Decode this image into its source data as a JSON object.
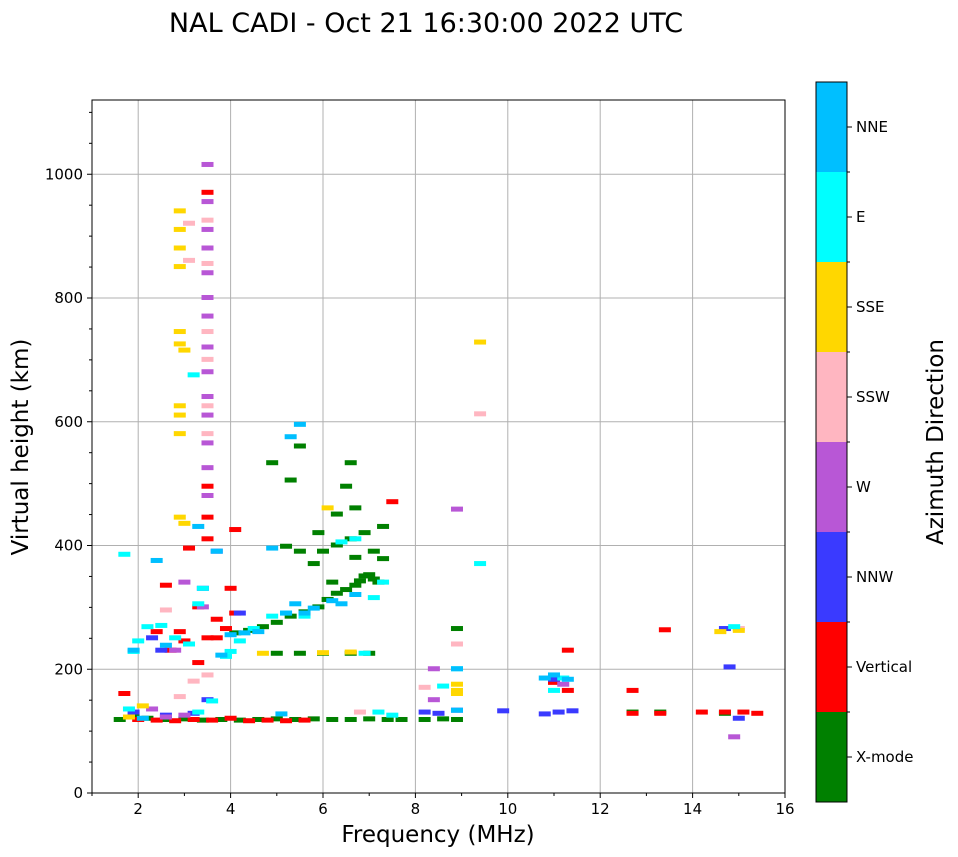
{
  "chart_data": {
    "type": "scatter",
    "title": "NAL CADI - Oct 21 16:30:00 2022 UTC",
    "xlabel": "Frequency (MHz)",
    "ylabel": "Virtual height (km)",
    "xlim": [
      1,
      16
    ],
    "ylim": [
      0,
      1120
    ],
    "x_ticks": [
      2,
      4,
      6,
      8,
      10,
      12,
      14,
      16
    ],
    "y_ticks": [
      0,
      200,
      400,
      600,
      800,
      1000
    ],
    "grid": true,
    "colorbar": {
      "label": "Azimuth Direction",
      "categories": [
        "X-mode",
        "Vertical",
        "NNW",
        "W",
        "SSW",
        "SSE",
        "E",
        "NNE"
      ],
      "colors": [
        "#008000",
        "#ff0000",
        "#3a3aff",
        "#b857d6",
        "#ffb6c1",
        "#ffd700",
        "#00ffff",
        "#00bfff"
      ]
    },
    "series": [
      {
        "name": "X-mode",
        "points": [
          [
            1.6,
            118
          ],
          [
            1.9,
            122
          ],
          [
            2.2,
            120
          ],
          [
            2.6,
            118
          ],
          [
            3.0,
            119
          ],
          [
            3.4,
            117
          ],
          [
            3.8,
            118
          ],
          [
            4.2,
            117
          ],
          [
            4.6,
            118
          ],
          [
            5.0,
            119
          ],
          [
            5.4,
            118
          ],
          [
            5.8,
            119
          ],
          [
            6.2,
            118
          ],
          [
            6.6,
            118
          ],
          [
            7.0,
            119
          ],
          [
            7.4,
            118
          ],
          [
            7.7,
            118
          ],
          [
            8.2,
            118
          ],
          [
            8.6,
            119
          ],
          [
            8.9,
            118
          ],
          [
            12.7,
            130
          ],
          [
            13.3,
            130
          ],
          [
            14.7,
            128
          ],
          [
            5.0,
            225
          ],
          [
            5.5,
            225
          ],
          [
            6.0,
            225
          ],
          [
            6.6,
            225
          ],
          [
            7.0,
            225
          ],
          [
            4.1,
            258
          ],
          [
            4.4,
            262
          ],
          [
            4.7,
            268
          ],
          [
            5.0,
            275
          ],
          [
            5.3,
            285
          ],
          [
            5.6,
            292
          ],
          [
            5.9,
            300
          ],
          [
            6.1,
            312
          ],
          [
            6.3,
            322
          ],
          [
            6.5,
            328
          ],
          [
            6.7,
            335
          ],
          [
            6.8,
            342
          ],
          [
            6.9,
            350
          ],
          [
            7.0,
            352
          ],
          [
            7.1,
            345
          ],
          [
            7.2,
            340
          ],
          [
            6.0,
            390
          ],
          [
            6.3,
            400
          ],
          [
            6.6,
            410
          ],
          [
            6.9,
            420
          ],
          [
            7.3,
            430
          ],
          [
            5.2,
            398
          ],
          [
            5.5,
            390
          ],
          [
            5.9,
            420
          ],
          [
            6.3,
            450
          ],
          [
            6.7,
            460
          ],
          [
            6.5,
            495
          ],
          [
            6.6,
            533
          ],
          [
            4.9,
            533
          ],
          [
            5.3,
            505
          ],
          [
            5.5,
            560
          ],
          [
            5.8,
            370
          ],
          [
            6.2,
            340
          ],
          [
            6.7,
            380
          ],
          [
            7.1,
            390
          ],
          [
            7.3,
            378
          ],
          [
            8.9,
            265
          ]
        ]
      },
      {
        "name": "Vertical",
        "points": [
          [
            2.0,
            118
          ],
          [
            2.4,
            117
          ],
          [
            2.8,
            116
          ],
          [
            3.2,
            118
          ],
          [
            3.6,
            117
          ],
          [
            4.0,
            120
          ],
          [
            4.4,
            116
          ],
          [
            4.8,
            117
          ],
          [
            5.2,
            116
          ],
          [
            5.6,
            117
          ],
          [
            1.7,
            160
          ],
          [
            2.4,
            260
          ],
          [
            2.7,
            230
          ],
          [
            3.0,
            245
          ],
          [
            3.3,
            300
          ],
          [
            3.5,
            250
          ],
          [
            3.7,
            250
          ],
          [
            3.9,
            265
          ],
          [
            4.0,
            330
          ],
          [
            4.1,
            425
          ],
          [
            3.5,
            410
          ],
          [
            3.5,
            445
          ],
          [
            3.5,
            495
          ],
          [
            3.5,
            970
          ],
          [
            3.1,
            395
          ],
          [
            2.6,
            335
          ],
          [
            7.5,
            470
          ],
          [
            11.3,
            165
          ],
          [
            11.3,
            230
          ],
          [
            12.7,
            165
          ],
          [
            12.7,
            128
          ],
          [
            13.3,
            128
          ],
          [
            13.4,
            263
          ],
          [
            14.2,
            130
          ],
          [
            14.7,
            130
          ],
          [
            15.1,
            130
          ],
          [
            15.4,
            128
          ],
          [
            2.9,
            260
          ],
          [
            3.3,
            210
          ],
          [
            3.7,
            280
          ],
          [
            4.1,
            290
          ],
          [
            11.0,
            178
          ]
        ]
      },
      {
        "name": "NNW",
        "points": [
          [
            1.9,
            130
          ],
          [
            2.6,
            125
          ],
          [
            3.2,
            128
          ],
          [
            8.2,
            130
          ],
          [
            8.5,
            128
          ],
          [
            8.9,
            133
          ],
          [
            9.9,
            132
          ],
          [
            10.8,
            127
          ],
          [
            11.1,
            130
          ],
          [
            11.4,
            132
          ],
          [
            11.0,
            183
          ],
          [
            14.8,
            203
          ],
          [
            14.7,
            265
          ],
          [
            3.7,
            390
          ],
          [
            3.4,
            330
          ],
          [
            4.2,
            290
          ],
          [
            2.3,
            250
          ],
          [
            3.5,
            150
          ],
          [
            15.0,
            120
          ],
          [
            2.5,
            230
          ]
        ]
      },
      {
        "name": "W",
        "points": [
          [
            3.5,
            1015
          ],
          [
            3.5,
            955
          ],
          [
            3.5,
            910
          ],
          [
            3.5,
            880
          ],
          [
            3.5,
            840
          ],
          [
            3.5,
            800
          ],
          [
            3.5,
            770
          ],
          [
            3.5,
            720
          ],
          [
            3.5,
            680
          ],
          [
            3.5,
            640
          ],
          [
            3.5,
            610
          ],
          [
            3.5,
            565
          ],
          [
            3.5,
            525
          ],
          [
            3.5,
            480
          ],
          [
            8.4,
            200
          ],
          [
            8.4,
            150
          ],
          [
            8.9,
            458
          ],
          [
            14.9,
            90
          ],
          [
            2.3,
            135
          ],
          [
            2.6,
            122
          ],
          [
            3.0,
            125
          ],
          [
            3.4,
            300
          ],
          [
            3.0,
            340
          ],
          [
            2.8,
            230
          ],
          [
            11.2,
            175
          ]
        ]
      },
      {
        "name": "SSW",
        "points": [
          [
            3.5,
            925
          ],
          [
            3.5,
            855
          ],
          [
            3.5,
            745
          ],
          [
            3.5,
            700
          ],
          [
            3.5,
            625
          ],
          [
            3.5,
            580
          ],
          [
            3.1,
            920
          ],
          [
            3.1,
            860
          ],
          [
            9.4,
            612
          ],
          [
            8.9,
            240
          ],
          [
            8.2,
            170
          ],
          [
            6.8,
            130
          ],
          [
            2.6,
            295
          ],
          [
            2.9,
            155
          ],
          [
            3.5,
            190
          ],
          [
            3.2,
            180
          ],
          [
            15.0,
            265
          ]
        ]
      },
      {
        "name": "SSE",
        "points": [
          [
            2.9,
            940
          ],
          [
            2.9,
            910
          ],
          [
            2.9,
            880
          ],
          [
            2.9,
            850
          ],
          [
            2.9,
            745
          ],
          [
            2.9,
            725
          ],
          [
            3.0,
            715
          ],
          [
            2.9,
            625
          ],
          [
            2.9,
            610
          ],
          [
            2.9,
            580
          ],
          [
            2.9,
            445
          ],
          [
            3.0,
            435
          ],
          [
            9.4,
            728
          ],
          [
            8.9,
            175
          ],
          [
            8.9,
            165
          ],
          [
            8.9,
            160
          ],
          [
            6.1,
            460
          ],
          [
            6.6,
            227
          ],
          [
            4.7,
            225
          ],
          [
            14.6,
            260
          ],
          [
            15.0,
            262
          ],
          [
            1.8,
            122
          ],
          [
            2.1,
            140
          ],
          [
            6.0,
            226
          ]
        ]
      },
      {
        "name": "E",
        "points": [
          [
            1.7,
            385
          ],
          [
            1.9,
            228
          ],
          [
            2.0,
            245
          ],
          [
            2.2,
            268
          ],
          [
            2.5,
            270
          ],
          [
            2.8,
            250
          ],
          [
            3.2,
            675
          ],
          [
            3.3,
            305
          ],
          [
            3.1,
            240
          ],
          [
            3.6,
            148
          ],
          [
            3.3,
            130
          ],
          [
            3.9,
            220
          ],
          [
            4.2,
            245
          ],
          [
            4.5,
            265
          ],
          [
            4.9,
            285
          ],
          [
            5.2,
            290
          ],
          [
            5.6,
            285
          ],
          [
            6.4,
            405
          ],
          [
            6.7,
            410
          ],
          [
            7.1,
            315
          ],
          [
            7.3,
            340
          ],
          [
            7.5,
            125
          ],
          [
            7.2,
            130
          ],
          [
            9.4,
            370
          ],
          [
            8.6,
            172
          ],
          [
            11.0,
            165
          ],
          [
            11.2,
            185
          ],
          [
            14.9,
            268
          ],
          [
            3.4,
            330
          ],
          [
            4.0,
            228
          ],
          [
            6.9,
            225
          ],
          [
            8.9,
            200
          ],
          [
            1.8,
            135
          ]
        ]
      },
      {
        "name": "NNE",
        "points": [
          [
            2.1,
            120
          ],
          [
            2.4,
            375
          ],
          [
            2.6,
            238
          ],
          [
            3.3,
            430
          ],
          [
            3.7,
            390
          ],
          [
            4.0,
            255
          ],
          [
            4.3,
            258
          ],
          [
            4.6,
            260
          ],
          [
            4.9,
            395
          ],
          [
            5.2,
            290
          ],
          [
            5.4,
            305
          ],
          [
            5.5,
            595
          ],
          [
            5.3,
            575
          ],
          [
            5.6,
            290
          ],
          [
            5.8,
            298
          ],
          [
            6.2,
            310
          ],
          [
            6.4,
            305
          ],
          [
            6.7,
            320
          ],
          [
            5.1,
            127
          ],
          [
            8.9,
            200
          ],
          [
            10.8,
            185
          ],
          [
            11.3,
            183
          ],
          [
            11.0,
            190
          ],
          [
            8.9,
            133
          ],
          [
            1.9,
            230
          ],
          [
            3.8,
            222
          ]
        ]
      }
    ]
  }
}
